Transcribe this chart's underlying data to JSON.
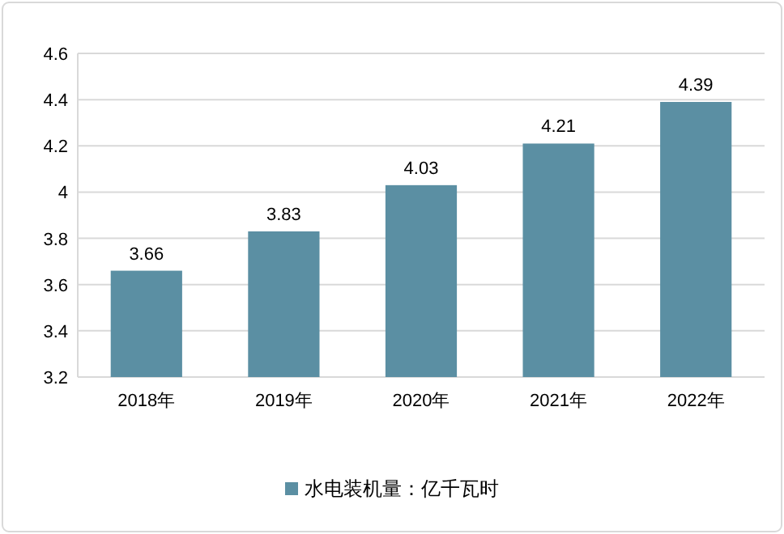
{
  "chart_data": {
    "type": "bar",
    "categories": [
      "2018年",
      "2019年",
      "2020年",
      "2021年",
      "2022年"
    ],
    "series": [
      {
        "name": "水电装机量：亿千瓦时",
        "color": "#5b8fa3",
        "values": [
          3.66,
          3.83,
          4.03,
          4.21,
          4.39
        ]
      }
    ],
    "ylim": [
      3.2,
      4.6
    ],
    "yticks": [
      3.2,
      3.4,
      3.6,
      3.8,
      4,
      4.2,
      4.4,
      4.6
    ],
    "grid": "y",
    "legend": "bottom",
    "data_labels": true
  }
}
